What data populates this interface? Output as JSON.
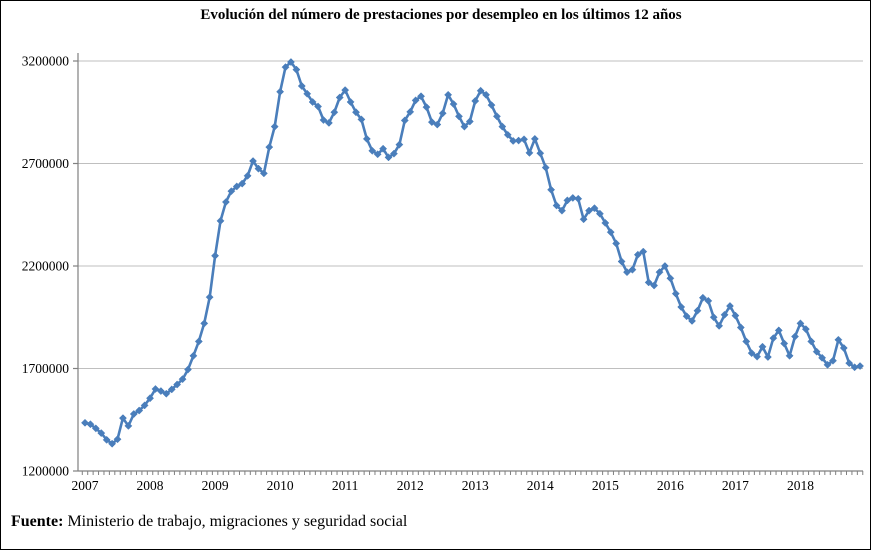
{
  "title": "Evolución del número de prestaciones por desempleo en los últimos 12 años",
  "source": {
    "label": "Fuente:",
    "text": " Ministerio de trabajo, migraciones y seguridad social"
  },
  "chart_data": {
    "type": "line",
    "title": "Evolución del número de prestaciones por desempleo en los últimos 12 años",
    "x_start": "2007-01",
    "x_end": "2018-12",
    "x_tick_labels": [
      "2007",
      "2008",
      "2009",
      "2010",
      "2011",
      "2012",
      "2013",
      "2014",
      "2015",
      "2016",
      "2017",
      "2018"
    ],
    "months_per_tick": 12,
    "y_ticks": [
      1200000,
      1700000,
      2200000,
      2700000,
      3200000
    ],
    "ylim": [
      1200000,
      3200000
    ],
    "grid": "horizontal",
    "legend": "none",
    "line_color": "#4a7ebb",
    "marker": "diamond",
    "gridline_color": "#bfbfbf",
    "axis_color": "#808080",
    "values": [
      1435000,
      1428000,
      1408000,
      1385000,
      1352000,
      1333000,
      1355000,
      1458000,
      1420000,
      1478000,
      1495000,
      1520000,
      1555000,
      1600000,
      1590000,
      1577000,
      1598000,
      1622000,
      1648000,
      1695000,
      1762000,
      1832000,
      1920000,
      2048000,
      2250000,
      2420000,
      2512000,
      2565000,
      2588000,
      2602000,
      2640000,
      2712000,
      2675000,
      2652000,
      2780000,
      2880000,
      3050000,
      3170000,
      3195000,
      3158000,
      3078000,
      3040000,
      3000000,
      2978000,
      2912000,
      2898000,
      2950000,
      3022000,
      3058000,
      3000000,
      2950000,
      2915000,
      2820000,
      2762000,
      2745000,
      2772000,
      2730000,
      2748000,
      2792000,
      2910000,
      2952000,
      3008000,
      3028000,
      2975000,
      2902000,
      2890000,
      2945000,
      3035000,
      2990000,
      2930000,
      2880000,
      2905000,
      3005000,
      3055000,
      3035000,
      2985000,
      2930000,
      2880000,
      2840000,
      2810000,
      2812000,
      2818000,
      2752000,
      2820000,
      2750000,
      2680000,
      2572000,
      2495000,
      2470000,
      2520000,
      2532000,
      2528000,
      2428000,
      2470000,
      2482000,
      2455000,
      2410000,
      2365000,
      2310000,
      2222000,
      2170000,
      2182000,
      2255000,
      2270000,
      2120000,
      2105000,
      2170000,
      2200000,
      2140000,
      2065000,
      2000000,
      1955000,
      1932000,
      1982000,
      2045000,
      2030000,
      1950000,
      1908000,
      1962000,
      2005000,
      1958000,
      1900000,
      1832000,
      1775000,
      1758000,
      1806000,
      1756000,
      1848000,
      1886000,
      1822000,
      1762000,
      1856000,
      1920000,
      1892000,
      1832000,
      1782000,
      1752000,
      1718000,
      1738000,
      1840000,
      1800000,
      1726000,
      1706000,
      1712000
    ]
  }
}
